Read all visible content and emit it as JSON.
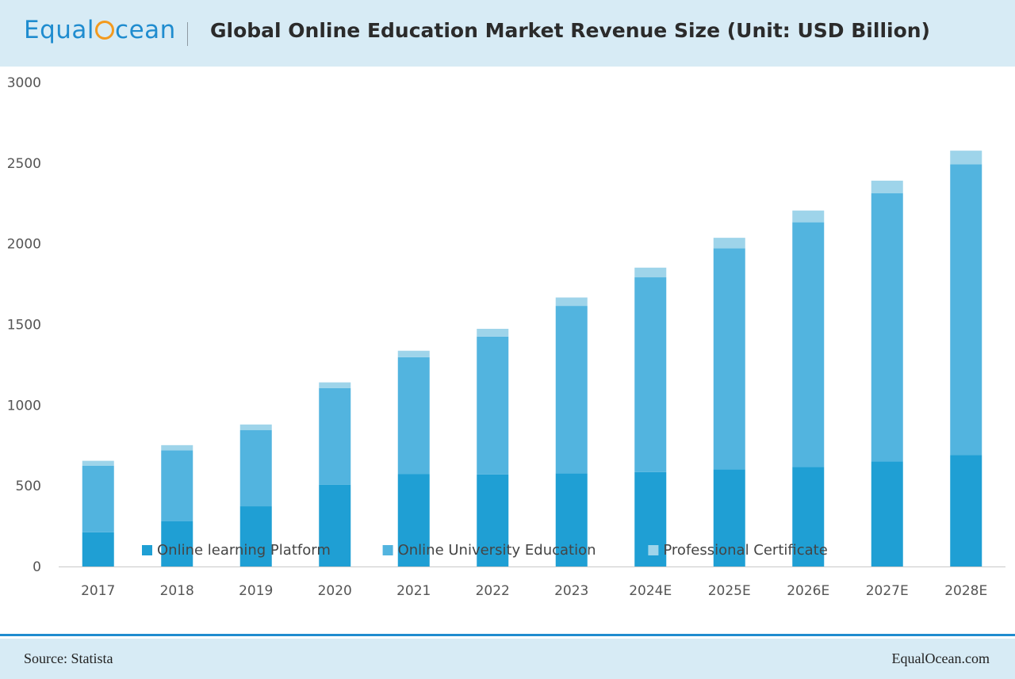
{
  "header": {
    "logo_pre": "Equal",
    "logo_post": "cean",
    "title": "Global Online Education Market Revenue Size (Unit: USD Billion)"
  },
  "footer": {
    "source": "Source:  Statista",
    "site": "EqualOcean.com"
  },
  "colors": {
    "header_bg": "#d7ebf5",
    "brand_blue": "#1f8ccf",
    "brand_orange": "#f39a1e"
  },
  "chart_data": {
    "type": "bar",
    "stacked": true,
    "categories": [
      "2017",
      "2018",
      "2019",
      "2020",
      "2021",
      "2022",
      "2023",
      "2024E",
      "2025E",
      "2026E",
      "2027E",
      "2028E"
    ],
    "series": [
      {
        "name": "Online learning Platform",
        "color": "#1f9fd4",
        "values": [
          212,
          280,
          373,
          506,
          572,
          570,
          578,
          585,
          602,
          616,
          652,
          690
        ]
      },
      {
        "name": "Online University Education",
        "color": "#52b4df",
        "values": [
          413,
          440,
          473,
          600,
          725,
          855,
          1037,
          1207,
          1370,
          1517,
          1662,
          1802
        ]
      },
      {
        "name": "Professional Certificate",
        "color": "#9ed4ea",
        "values": [
          30,
          32,
          34,
          35,
          40,
          48,
          52,
          60,
          65,
          73,
          77,
          85
        ]
      }
    ],
    "yticks": [
      0,
      500,
      1000,
      1500,
      2000,
      2500,
      3000
    ],
    "ylim": [
      0,
      3000
    ],
    "grid": false,
    "legend": "bottom-center"
  }
}
